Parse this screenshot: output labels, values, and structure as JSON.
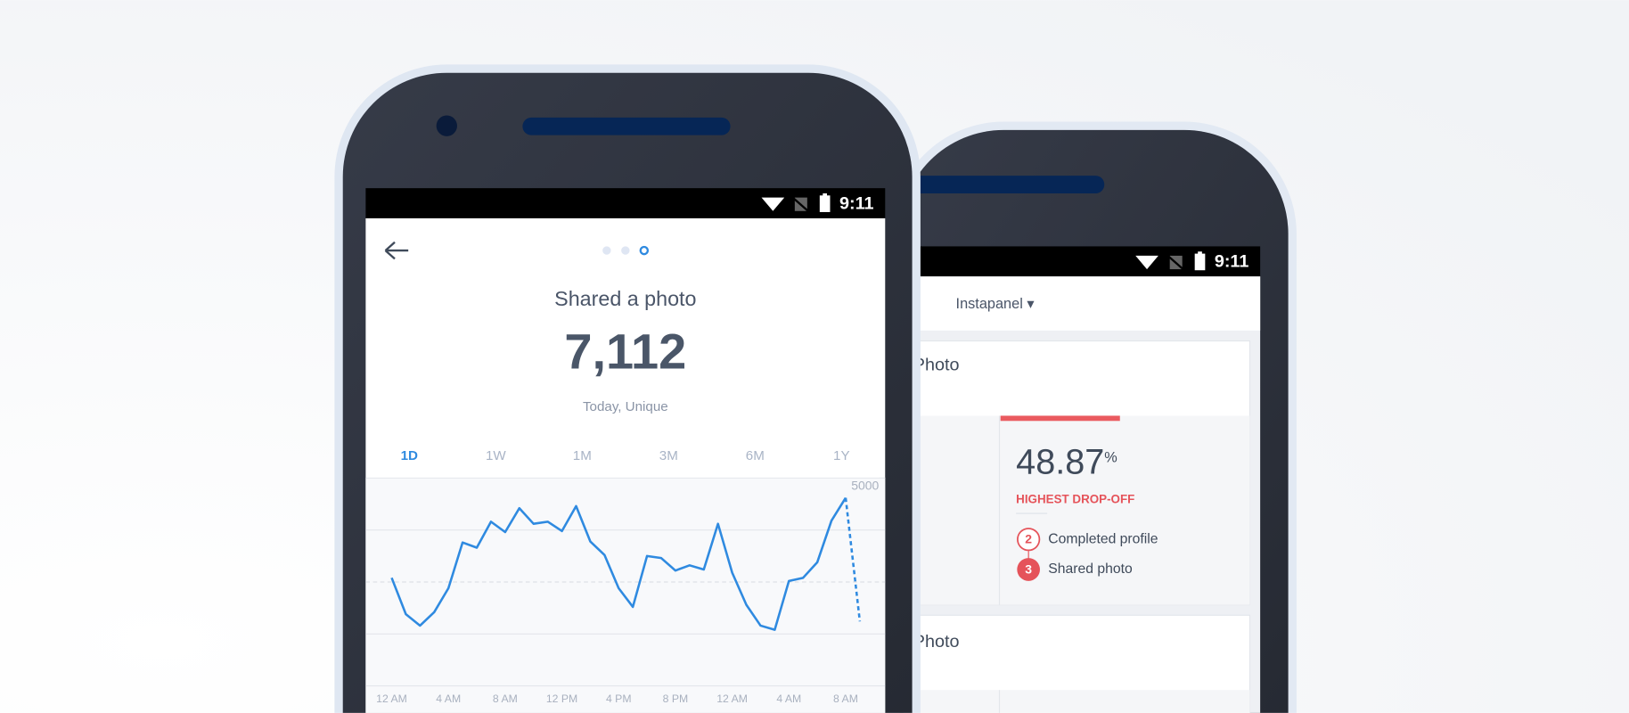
{
  "chart_data": {
    "type": "line",
    "categories": [
      "12 AM",
      null,
      null,
      null,
      "4 AM",
      null,
      null,
      null,
      "8 AM",
      null,
      null,
      null,
      "12 PM",
      null,
      null,
      null,
      "4 PM",
      null,
      null,
      null,
      "8 PM",
      null,
      null,
      null,
      "12 AM",
      null,
      null,
      null,
      "4 AM",
      null,
      null,
      null,
      "8 AM",
      null
    ],
    "series": [
      {
        "color": "#2f8ae0",
        "values": [
          2600,
          1725,
          1450,
          1775,
          2350,
          3450,
          3325,
          3950,
          3700,
          4275,
          3900,
          3950,
          3725,
          4325,
          3475,
          3150,
          2350,
          1900,
          3125,
          3075,
          2775,
          2900,
          2800,
          3900,
          2725,
          1950,
          1450,
          1350,
          2525,
          2600,
          2975,
          3975,
          4525,
          1550
        ]
      }
    ],
    "ylim": [
      0,
      5000
    ],
    "yticks": [
      5000
    ],
    "dashed_last_segment": true
  },
  "front_phone": {
    "status_time": "9:11",
    "title": "Shared a photo",
    "value": "7,112",
    "subtitle": "Today, Unique",
    "ranges": [
      "1D",
      "1W",
      "1M",
      "3M",
      "6M",
      "1Y"
    ],
    "active_range": 0
  },
  "back_phone": {
    "status_time": "9:11",
    "project": "Instapanel ▾",
    "cards": [
      {
        "title": "Photo",
        "rate": "48.87",
        "unit": "%",
        "label": "HIGHEST DROP-OFF",
        "steps": [
          {
            "number": "2",
            "name": "Completed profile"
          },
          {
            "number": "3",
            "name": "Shared photo"
          }
        ]
      },
      {
        "title": "Photo"
      }
    ]
  }
}
